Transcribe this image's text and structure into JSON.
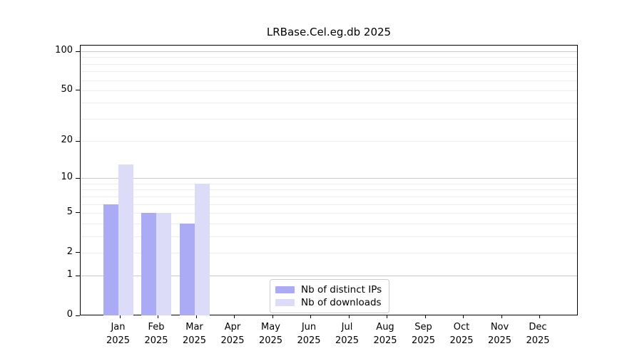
{
  "chart_data": {
    "type": "bar",
    "title": "LRBase.Cel.eg.db 2025",
    "categories": [
      "Jan",
      "Feb",
      "Mar",
      "Apr",
      "May",
      "Jun",
      "Jul",
      "Aug",
      "Sep",
      "Oct",
      "Nov",
      "Dec"
    ],
    "category_year": "2025",
    "series": [
      {
        "name": "Nb of distinct IPs",
        "color": "#aaaaf5",
        "values": [
          6,
          5,
          4,
          0,
          0,
          0,
          0,
          0,
          0,
          0,
          0,
          0
        ]
      },
      {
        "name": "Nb of downloads",
        "color": "#dcdcf8",
        "values": [
          13,
          5,
          9,
          0,
          0,
          0,
          0,
          0,
          0,
          0,
          0,
          0
        ]
      }
    ],
    "y_axis": {
      "scale": "log10(value+1)",
      "tick_labels": [
        0,
        1,
        2,
        5,
        10,
        20,
        50,
        100
      ],
      "major_gridlines": [
        1,
        10,
        100
      ],
      "minor_gridlines": [
        2,
        3,
        4,
        5,
        6,
        7,
        8,
        9,
        20,
        30,
        40,
        50,
        60,
        70,
        80,
        90
      ],
      "max_value": 112
    },
    "legend_position": "bottom-center",
    "grid": "on",
    "colors": {
      "major_grid": "#c9c9c9",
      "minor_grid": "#ededed",
      "axis": "#000000",
      "background": "#ffffff"
    }
  }
}
